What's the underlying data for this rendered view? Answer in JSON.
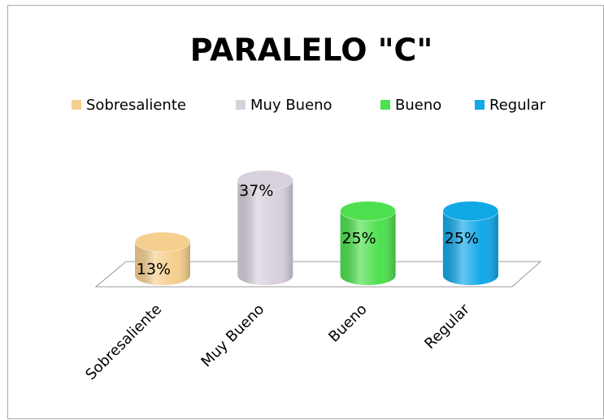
{
  "chart_data": {
    "type": "bar3d",
    "title": "PARALELO \"C\"",
    "categories": [
      "Sobresaliente",
      "Muy Bueno",
      "Bueno",
      "Regular"
    ],
    "values": [
      13,
      37,
      25,
      25
    ],
    "value_labels": [
      "13%",
      "37%",
      "25%",
      "25%"
    ],
    "colors": [
      "#f5cf8e",
      "#d8d0dc",
      "#4ee04e",
      "#12a8e8"
    ],
    "legend": "top"
  }
}
